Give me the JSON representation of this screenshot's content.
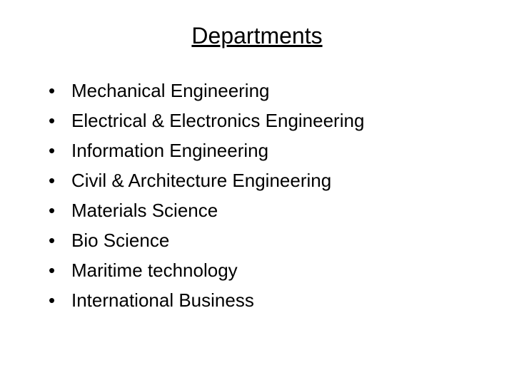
{
  "slide": {
    "title": "Departments",
    "background_color": "#ffffff",
    "text_color": "#000000",
    "title_fontsize": 32,
    "title_underline": true,
    "body_fontsize": 26,
    "line_height": 36,
    "font_family": "Arial",
    "items": [
      "Mechanical Engineering",
      "Electrical & Electronics Engineering",
      "Information Engineering",
      "Civil & Architecture Engineering",
      "Materials Science",
      "Bio Science",
      "Maritime technology",
      "International Business"
    ],
    "bullet_char": "•"
  }
}
